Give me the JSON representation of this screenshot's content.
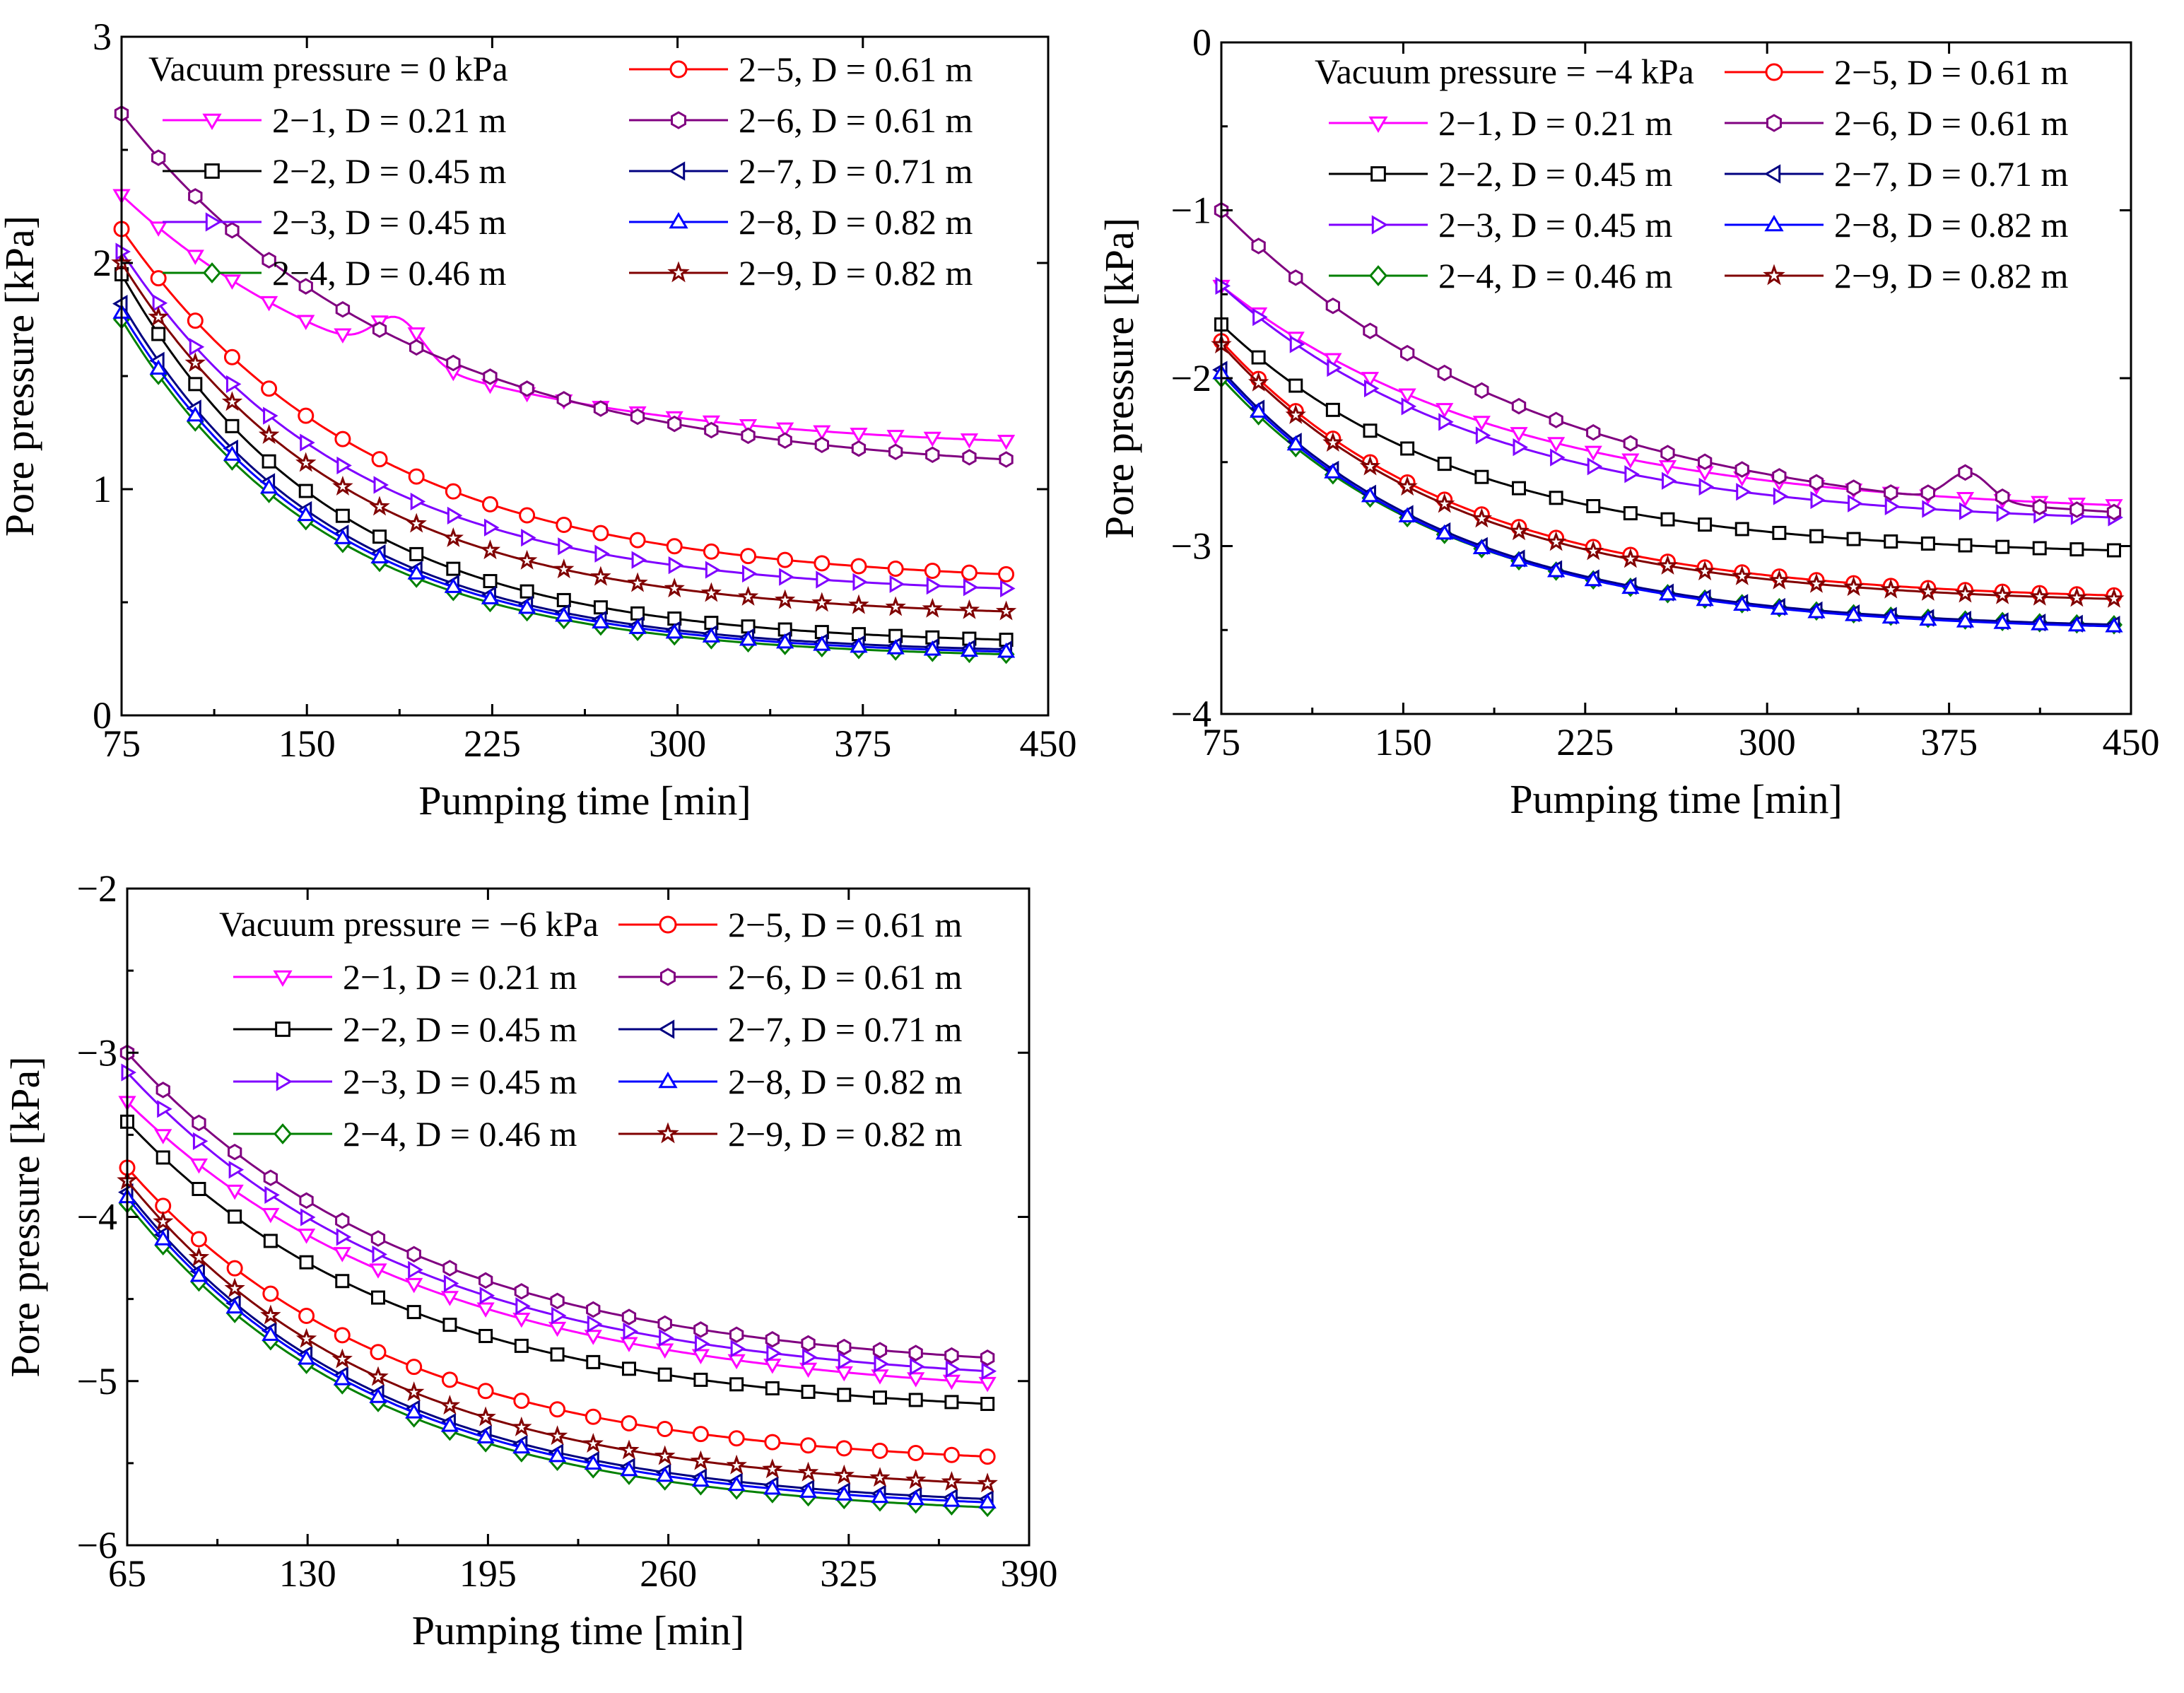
{
  "figure": {
    "panels_count": 3
  },
  "chart_data": [
    {
      "type": "line",
      "legend_title": "Vacuum pressure = 0 kPa",
      "xlabel": "Pumping time [min]",
      "ylabel": "Pore pressure [kPa]",
      "xlim": [
        75,
        450
      ],
      "ylim": [
        0,
        3
      ],
      "xticks": [
        75,
        150,
        225,
        300,
        375,
        450
      ],
      "yticks": [
        0,
        1,
        2,
        3
      ],
      "grid": false,
      "legend_position": "top-right",
      "x": [
        75,
        433
      ],
      "series": [
        {
          "name": "2−1, D = 0.21 m",
          "start": 2.3,
          "end": 1.17,
          "tau": 110,
          "bump": {
            "x": 187,
            "dy": 0.18,
            "w": 14
          }
        },
        {
          "name": "2−2, D = 0.45 m",
          "start": 1.95,
          "end": 0.31,
          "tau": 85
        },
        {
          "name": "2−3, D = 0.45 m",
          "start": 2.05,
          "end": 0.53,
          "tau": 92
        },
        {
          "name": "2−4, D = 0.46 m",
          "start": 1.75,
          "end": 0.25,
          "tau": 83
        },
        {
          "name": "2−5, D = 0.61 m",
          "start": 2.15,
          "end": 0.58,
          "tau": 100
        },
        {
          "name": "2−6, D = 0.61 m",
          "start": 2.66,
          "end": 1.06,
          "tau": 115
        },
        {
          "name": "2−7, D = 0.71 m",
          "start": 1.82,
          "end": 0.27,
          "tau": 84
        },
        {
          "name": "2−8, D = 0.82 m",
          "start": 1.78,
          "end": 0.26,
          "tau": 84
        },
        {
          "name": "2−9, D = 0.82 m",
          "start": 2.0,
          "end": 0.43,
          "tau": 90
        }
      ]
    },
    {
      "type": "line",
      "legend_title": "Vacuum pressure = −4 kPa",
      "xlabel": "Pumping time [min]",
      "ylabel": "Pore pressure [kPa]",
      "xlim": [
        75,
        450
      ],
      "ylim": [
        -4,
        0
      ],
      "xticks": [
        75,
        150,
        225,
        300,
        375,
        450
      ],
      "yticks": [
        -4,
        -3,
        -2,
        -1,
        0
      ],
      "grid": false,
      "legend_position": "top-right",
      "x": [
        75,
        443
      ],
      "series": [
        {
          "name": "2−1, D = 0.21 m",
          "start": -1.45,
          "end": -2.82,
          "tau": 120
        },
        {
          "name": "2−2, D = 0.45 m",
          "start": -1.68,
          "end": -3.06,
          "tau": 100
        },
        {
          "name": "2−3, D = 0.45 m",
          "start": -1.45,
          "end": -2.88,
          "tau": 110
        },
        {
          "name": "2−4, D = 0.46 m",
          "start": -2.0,
          "end": -3.5,
          "tau": 95
        },
        {
          "name": "2−5, D = 0.61 m",
          "start": -1.78,
          "end": -3.33,
          "tau": 98
        },
        {
          "name": "2−6, D = 0.61 m",
          "start": -1.0,
          "end": -2.91,
          "tau": 130,
          "bump": {
            "x": 383,
            "dy": 0.17,
            "w": 12
          }
        },
        {
          "name": "2−7, D = 0.71 m",
          "start": -1.95,
          "end": -3.5,
          "tau": 95
        },
        {
          "name": "2−8, D = 0.82 m",
          "start": -1.97,
          "end": -3.51,
          "tau": 95
        },
        {
          "name": "2−9, D = 0.82 m",
          "start": -1.8,
          "end": -3.35,
          "tau": 97
        }
      ]
    },
    {
      "type": "line",
      "legend_title": "Vacuum pressure = −6 kPa",
      "xlabel": "Pumping time [min]",
      "ylabel": "Pore pressure [kPa]",
      "xlim": [
        65,
        390
      ],
      "ylim": [
        -6,
        -2
      ],
      "xticks": [
        65,
        130,
        195,
        260,
        325,
        390
      ],
      "yticks": [
        -6,
        -5,
        -4,
        -3,
        -2
      ],
      "grid": false,
      "legend_position": "top-right",
      "x": [
        65,
        375
      ],
      "series": [
        {
          "name": "2−1, D = 0.21 m",
          "start": -3.3,
          "end": -5.12,
          "tau": 110
        },
        {
          "name": "2−2, D = 0.45 m",
          "start": -3.42,
          "end": -5.22,
          "tau": 100
        },
        {
          "name": "2−3, D = 0.45 m",
          "start": -3.12,
          "end": -5.04,
          "tau": 105
        },
        {
          "name": "2−4, D = 0.46 m",
          "start": -3.92,
          "end": -5.83,
          "tau": 90
        },
        {
          "name": "2−5, D = 0.61 m",
          "start": -3.7,
          "end": -5.53,
          "tau": 95
        },
        {
          "name": "2−6, D = 0.61 m",
          "start": -3.0,
          "end": -4.96,
          "tau": 105
        },
        {
          "name": "2−7, D = 0.71 m",
          "start": -3.85,
          "end": -5.78,
          "tau": 90
        },
        {
          "name": "2−8, D = 0.82 m",
          "start": -3.88,
          "end": -5.8,
          "tau": 90
        },
        {
          "name": "2−9, D = 0.82 m",
          "start": -3.78,
          "end": -5.69,
          "tau": 92
        }
      ]
    }
  ],
  "series_style": {
    "2−1": {
      "color": "#ff00ff",
      "marker": "triangle-down-icon"
    },
    "2−2": {
      "color": "#000000",
      "marker": "square-icon"
    },
    "2−3": {
      "color": "#7f00ff",
      "marker": "triangle-right-icon"
    },
    "2−4": {
      "color": "#008000",
      "marker": "diamond-icon"
    },
    "2−5": {
      "color": "#ff0000",
      "marker": "circle-icon"
    },
    "2−6": {
      "color": "#800080",
      "marker": "hexagon-icon"
    },
    "2−7": {
      "color": "#000080",
      "marker": "triangle-left-icon"
    },
    "2−8": {
      "color": "#0000ff",
      "marker": "triangle-up-icon"
    },
    "2−9": {
      "color": "#800000",
      "marker": "star-icon"
    }
  }
}
